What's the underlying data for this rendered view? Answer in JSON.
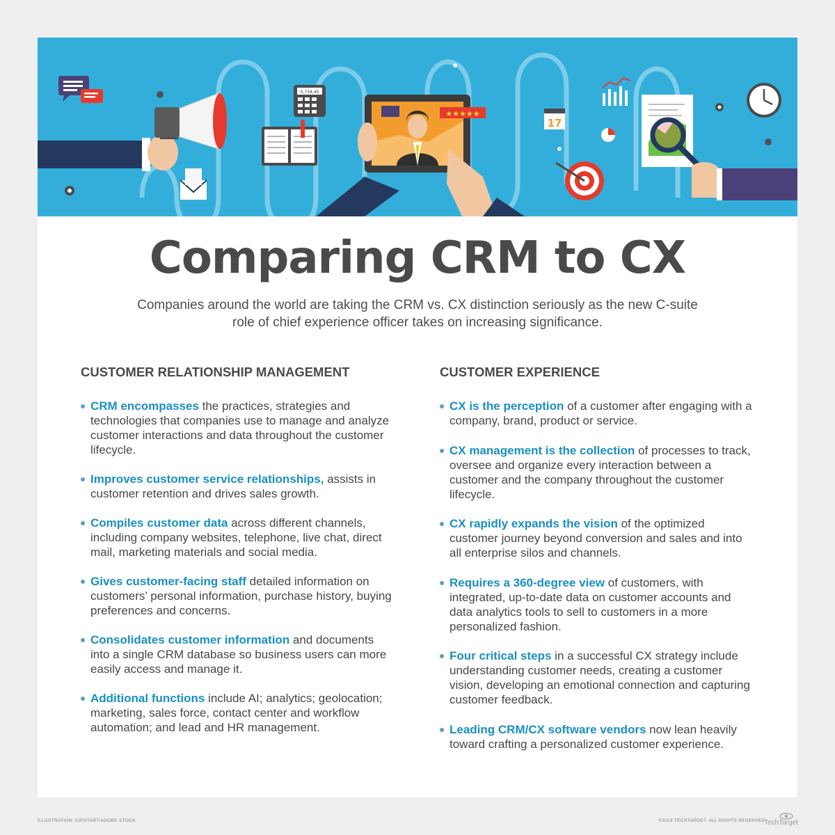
{
  "banner": {
    "calculator_display": "5,734,45",
    "calendar_day": "17",
    "colors": {
      "background": "#33aedb",
      "accent_red": "#e53a2c",
      "sleeve_navy": "#233a5e",
      "sleeve_purple": "#4b4178"
    },
    "icons": [
      "chat-bubbles-icon",
      "megaphone-icon",
      "calculator-icon",
      "notebook-icon",
      "tablet-icon",
      "businessman-avatar-icon",
      "rating-stars-icon",
      "bar-chart-icon",
      "calendar-icon",
      "target-icon",
      "pie-chart-icon",
      "clock-icon",
      "report-document-icon",
      "magnifier-icon",
      "envelope-icon",
      "gear-icon"
    ]
  },
  "title": "Comparing CRM to CX",
  "subtitle": "Companies around the world are taking the CRM vs. CX distinction seriously as the new C-suite role of chief experience officer takes on increasing significance.",
  "crm": {
    "heading": "CUSTOMER RELATIONSHIP MANAGEMENT",
    "items": [
      {
        "lead": "CRM encompasses",
        "text": " the practices, strategies and technologies that companies use to manage and analyze customer interactions and data throughout the customer lifecycle."
      },
      {
        "lead": "Improves customer service relationships,",
        "text": " assists in customer retention and drives sales growth."
      },
      {
        "lead": "Compiles customer data",
        "text": " across different channels, including company websites, telephone, live chat, direct mail, marketing materials and social media."
      },
      {
        "lead": "Gives customer-facing staff",
        "text": " detailed information on customers’ personal information, purchase history, buying preferences and concerns."
      },
      {
        "lead": "Consolidates customer information",
        "text": " and documents into a single CRM database so business users can more easily access and manage it."
      },
      {
        "lead": "Additional functions",
        "text": " include AI; analytics; geolocation; marketing, sales force, contact center and workflow automation; and lead and HR management."
      }
    ]
  },
  "cx": {
    "heading": "CUSTOMER EXPERIENCE",
    "items": [
      {
        "lead": "CX is the perception",
        "text": " of a customer after engaging with a company, brand, product or service."
      },
      {
        "lead": "CX management is the collection",
        "text": " of processes to track, oversee and organize every interaction between a customer and the company throughout the customer lifecycle."
      },
      {
        "lead": "CX rapidly expands the vision",
        "text": " of the optimized customer journey beyond conversion and sales and into all enterprise silos and channels."
      },
      {
        "lead": "Requires a 360-degree view",
        "text": " of customers, with integrated, up-to-date data on customer accounts and data analytics tools to sell to customers in a more personalized fashion."
      },
      {
        "lead": "Four critical steps",
        "text": " in a successful CX strategy include understanding customer needs, creating a customer vision, developing an emotional connection and capturing customer feedback."
      },
      {
        "lead": "Leading CRM/CX software vendors",
        "text": " now lean heavily toward crafting a personalized customer experience."
      }
    ]
  },
  "footer": {
    "credit": "ILLUSTRATION: CIPOTART/ADOBE STOCK",
    "copyright": "©2019 TECHTARGET. ALL RIGHTS RESERVED",
    "brand": "TechTarget"
  },
  "accent_color": "#1a8fc4"
}
